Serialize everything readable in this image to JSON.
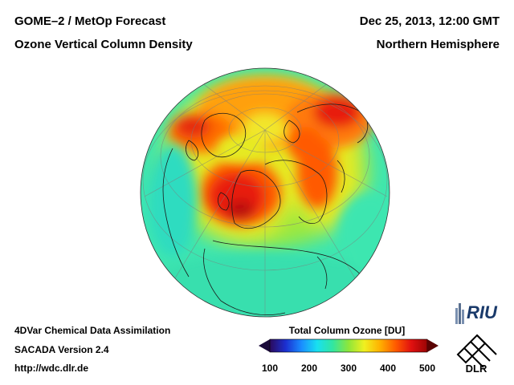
{
  "header": {
    "left_line1": "GOME–2 / MetOp Forecast",
    "left_line2": "Ozone Vertical Column Density",
    "right_line1": "Dec 25, 2013, 12:00 GMT",
    "right_line2": "Northern Hemisphere"
  },
  "footer": {
    "line1": "4DVar Chemical Data Assimilation",
    "line2": "SACADA Version 2.4",
    "line3": "http://wdc.dlr.de"
  },
  "colorbar": {
    "title": "Total Column Ozone [DU]",
    "min": 100,
    "max": 500,
    "ticks": [
      "100",
      "200",
      "300",
      "400",
      "500"
    ],
    "colors": [
      "#2b0a5c",
      "#1b2fd0",
      "#1a8cff",
      "#18e0f0",
      "#32e6a0",
      "#8ee63a",
      "#f0f020",
      "#ffb000",
      "#ff5a00",
      "#e01010",
      "#9a0505"
    ]
  },
  "logos": {
    "riu": "RIU",
    "dlr": "DLR"
  }
}
